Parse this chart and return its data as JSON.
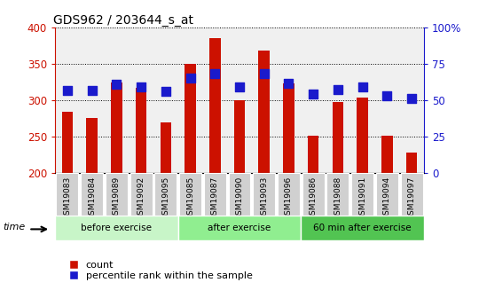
{
  "title": "GDS962 / 203644_s_at",
  "categories": [
    "GSM19083",
    "GSM19084",
    "GSM19089",
    "GSM19092",
    "GSM19095",
    "GSM19085",
    "GSM19087",
    "GSM19090",
    "GSM19093",
    "GSM19096",
    "GSM19086",
    "GSM19088",
    "GSM19091",
    "GSM19094",
    "GSM19097"
  ],
  "red_values": [
    284,
    276,
    325,
    317,
    270,
    350,
    386,
    300,
    368,
    323,
    251,
    297,
    304,
    251,
    228
  ],
  "blue_values": [
    313,
    313,
    322,
    318,
    312,
    330,
    336,
    318,
    337,
    323,
    308,
    315,
    318,
    306,
    302
  ],
  "groups": [
    {
      "label": "before exercise",
      "start": 0,
      "end": 5,
      "color": "#c8f5c8"
    },
    {
      "label": "after exercise",
      "start": 5,
      "end": 10,
      "color": "#90ee90"
    },
    {
      "label": "60 min after exercise",
      "start": 10,
      "end": 15,
      "color": "#52c452"
    }
  ],
  "ylim": [
    200,
    400
  ],
  "y_ticks_left": [
    200,
    250,
    300,
    350,
    400
  ],
  "y_ticks_right": [
    0,
    25,
    50,
    75,
    100
  ],
  "y_ticks_right_labels": [
    "0",
    "25",
    "50",
    "75",
    "100%"
  ],
  "red_color": "#cc1100",
  "blue_color": "#1a1acc",
  "bg_color": "#ffffff",
  "plot_bg_color": "#f0f0f0",
  "tick_bg_color": "#d0d0d0",
  "bar_width": 0.45,
  "blue_marker_size": 48
}
